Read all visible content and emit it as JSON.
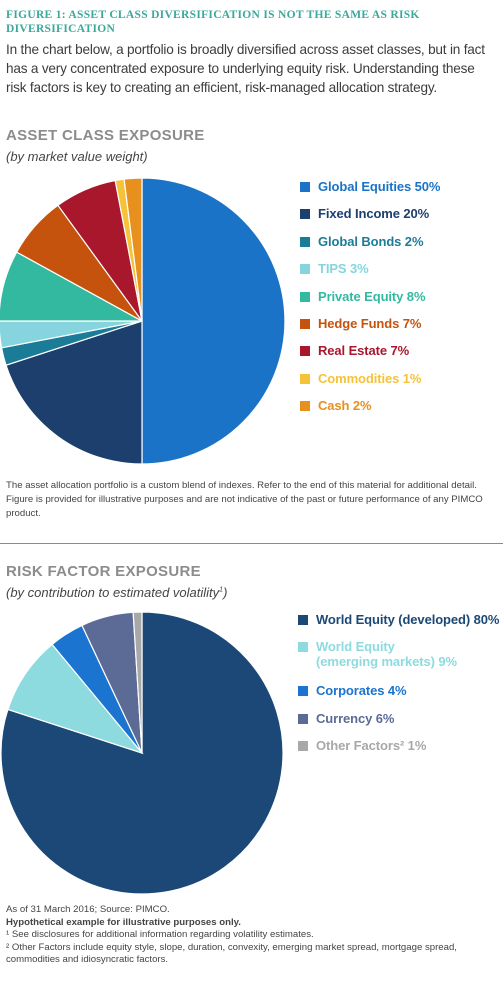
{
  "figure_title": "FIGURE 1: ASSET CLASS DIVERSIFICATION IS NOT THE SAME AS RISK DIVERSIFICATION",
  "intro": "In the chart below, a portfolio is broadly diversified across asset classes, but in fact has a very concentrated exposure to underlying equity risk. Understanding these risk factors is key to creating an efficient, risk-managed allocation strategy.",
  "asset_section": {
    "title": "ASSET CLASS EXPOSURE",
    "subtitle": "(by market value weight)",
    "note": "The asset allocation portfolio is a custom blend of indexes. Refer to the end of this material for additional detail. Figure is provided for illustrative purposes and are not indicative of the past or future performance of any PIMCO product."
  },
  "risk_section": {
    "title": "RISK FACTOR EXPOSURE",
    "subtitle": "(by contribution to estimated volatility",
    "subtitle_sup": "1",
    "subtitle_end": ")",
    "source": "As of 31 March 2016; Source: PIMCO.",
    "hypothetical": "Hypothetical example for illustrative purposes only.",
    "footnote1": "¹ See disclosures for additional information regarding volatility estimates.",
    "footnote2": "² Other Factors include equity style, slope, duration, convexity, emerging market spread, mortgage spread, commodities and idiosyncratic factors."
  },
  "chart_data": [
    {
      "type": "pie",
      "title": "ASSET CLASS EXPOSURE",
      "subtitle": "(by market value weight)",
      "start": "12 o'clock, clockwise",
      "legend_position": "right",
      "slices": [
        {
          "label": "Global Equities 50%",
          "value": 50,
          "color": "#1a73c6"
        },
        {
          "label": "Fixed Income 20%",
          "value": 20,
          "color": "#1c3f6e"
        },
        {
          "label": "Global Bonds 2%",
          "value": 2,
          "color": "#1b7c97"
        },
        {
          "label": "TIPS 3%",
          "value": 3,
          "color": "#86d5de"
        },
        {
          "label": "Private Equity 8%",
          "value": 8,
          "color": "#34b9a1"
        },
        {
          "label": "Hedge Funds 7%",
          "value": 7,
          "color": "#c6530d"
        },
        {
          "label": "Real Estate 7%",
          "value": 7,
          "color": "#a8172c"
        },
        {
          "label": "Commodities 1%",
          "value": 1,
          "color": "#f6c23a"
        },
        {
          "label": "Cash 2%",
          "value": 2,
          "color": "#e8901e"
        }
      ]
    },
    {
      "type": "pie",
      "title": "RISK FACTOR EXPOSURE",
      "subtitle": "(by contribution to estimated volatility1)",
      "start": "12 o'clock, clockwise",
      "legend_position": "right",
      "slices": [
        {
          "label": "World Equity (developed) 80%",
          "label_lines": [
            "World Equity (developed) 80%"
          ],
          "value": 80,
          "color": "#1b4876"
        },
        {
          "label": "World Equity (emerging markets) 9%",
          "label_lines": [
            "World Equity",
            "(emerging markets) 9%"
          ],
          "value": 9,
          "color": "#8ddbdf"
        },
        {
          "label": "Corporates 4%",
          "label_lines": [
            "Corporates 4%"
          ],
          "value": 4,
          "color": "#1b74cf"
        },
        {
          "label": "Currency 6%",
          "label_lines": [
            "Currency 6%"
          ],
          "value": 6,
          "color": "#5c6b96"
        },
        {
          "label": "Other Factors² 1%",
          "label_lines": [
            "Other Factors² 1%"
          ],
          "value": 1,
          "color": "#a8a8a8"
        }
      ]
    }
  ]
}
